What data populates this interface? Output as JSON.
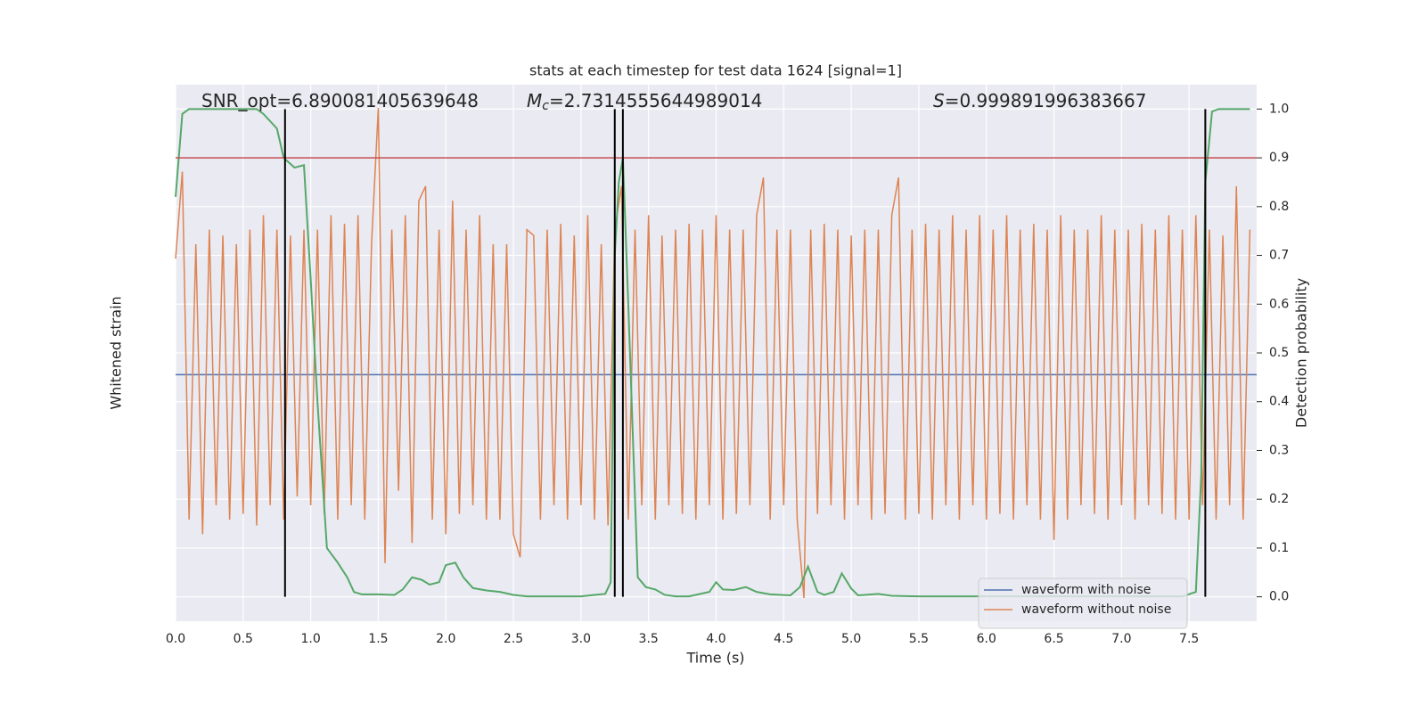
{
  "chart_data": {
    "type": "line",
    "title": "stats at each timestep for test data 1624 [signal=1]",
    "xlabel": "Time (s)",
    "ylabel": "Whitened strain",
    "y2label": "Detection probability",
    "xlim": [
      0,
      8
    ],
    "xticks": [
      {
        "value": 0,
        "label": "0.0"
      },
      0.5,
      {
        "value": 1,
        "label": "1.0"
      },
      1.5,
      {
        "value": 2,
        "label": "2.0"
      },
      2.5,
      {
        "value": 3,
        "label": "3.0"
      },
      3.5,
      {
        "value": 4,
        "label": "4.0"
      },
      4.5,
      {
        "value": 5,
        "label": "5.0"
      },
      5.5,
      {
        "value": 6,
        "label": "6.0"
      },
      6.5,
      {
        "value": 7,
        "label": "7.0"
      },
      7.5
    ],
    "ylim": [
      -0.85,
      1.0
    ],
    "y2lim": [
      -0.05,
      1.05
    ],
    "y2ticks": [
      {
        "value": 0,
        "label": "0.0"
      },
      0.1,
      0.2,
      0.3,
      0.4,
      0.5,
      0.6,
      0.7,
      0.8,
      0.9,
      {
        "value": 1,
        "label": "1.0"
      }
    ],
    "grid": true,
    "legend": "lower right",
    "annotations": [
      {
        "text": "SNR_opt=6.890081405639648"
      },
      {
        "symbol": "M",
        "sub": "c",
        "text": "=2.7314555644989014"
      },
      {
        "symbol": "S",
        "text": "=0.999891996383667"
      }
    ],
    "series": [
      {
        "name": "waveform with noise",
        "color": "#4c72b0",
        "axis": "y",
        "x": [
          0,
          8
        ],
        "values": [
          0,
          0
        ]
      },
      {
        "name": "waveform without noise",
        "color": "#dd8452",
        "axis": "y",
        "x": [
          0,
          0.05,
          0.1,
          0.15,
          0.2,
          0.25,
          0.3,
          0.35,
          0.4,
          0.45,
          0.5,
          0.55,
          0.6,
          0.65,
          0.7,
          0.75,
          0.8,
          0.85,
          0.9,
          0.95,
          1,
          1.05,
          1.1,
          1.15,
          1.2,
          1.25,
          1.3,
          1.35,
          1.4,
          1.45,
          1.5,
          1.55,
          1.6,
          1.65,
          1.7,
          1.75,
          1.8,
          1.85,
          1.9,
          1.95,
          2,
          2.05,
          2.1,
          2.15,
          2.2,
          2.25,
          2.3,
          2.35,
          2.4,
          2.45,
          2.5,
          2.55,
          2.6,
          2.65,
          2.7,
          2.75,
          2.8,
          2.85,
          2.9,
          2.95,
          3,
          3.05,
          3.1,
          3.15,
          3.2,
          3.25,
          3.3,
          3.35,
          3.4,
          3.45,
          3.5,
          3.55,
          3.6,
          3.65,
          3.7,
          3.75,
          3.8,
          3.85,
          3.9,
          3.95,
          4,
          4.05,
          4.1,
          4.15,
          4.2,
          4.25,
          4.3,
          4.35,
          4.4,
          4.45,
          4.5,
          4.55,
          4.6,
          4.65,
          4.7,
          4.75,
          4.8,
          4.85,
          4.9,
          4.95,
          5,
          5.05,
          5.1,
          5.15,
          5.2,
          5.25,
          5.3,
          5.35,
          5.4,
          5.45,
          5.5,
          5.55,
          5.6,
          5.65,
          5.7,
          5.75,
          5.8,
          5.85,
          5.9,
          5.95,
          6,
          6.05,
          6.1,
          6.15,
          6.2,
          6.25,
          6.3,
          6.35,
          6.4,
          6.45,
          6.5,
          6.55,
          6.6,
          6.65,
          6.7,
          6.75,
          6.8,
          6.85,
          6.9,
          6.95,
          7,
          7.05,
          7.1,
          7.15,
          7.2,
          7.25,
          7.3,
          7.35,
          7.4,
          7.45,
          7.5,
          7.55,
          7.6,
          7.65,
          7.7,
          7.75,
          7.8,
          7.85,
          7.9,
          7.95
        ],
        "values": [
          0.4,
          0.7,
          -0.5,
          0.45,
          -0.55,
          0.5,
          -0.45,
          0.48,
          -0.5,
          0.45,
          -0.48,
          0.5,
          -0.52,
          0.55,
          -0.45,
          0.5,
          -0.5,
          0.48,
          -0.42,
          0.5,
          -0.45,
          0.5,
          -0.48,
          0.55,
          -0.5,
          0.52,
          -0.45,
          0.55,
          -0.5,
          0.45,
          0.92,
          -0.65,
          0.5,
          -0.4,
          0.55,
          -0.58,
          0.6,
          0.65,
          -0.5,
          0.5,
          -0.55,
          0.6,
          -0.48,
          0.5,
          -0.45,
          0.55,
          -0.5,
          0.45,
          -0.5,
          0.45,
          -0.55,
          -0.63,
          0.5,
          0.48,
          -0.5,
          0.5,
          -0.45,
          0.52,
          -0.5,
          0.48,
          -0.45,
          0.55,
          -0.5,
          0.45,
          -0.52,
          0.5,
          0.65,
          -0.5,
          0.5,
          -0.45,
          0.55,
          -0.5,
          0.48,
          -0.45,
          0.5,
          -0.48,
          0.52,
          -0.5,
          0.5,
          -0.45,
          0.55,
          -0.5,
          0.5,
          -0.48,
          0.5,
          -0.45,
          0.55,
          0.68,
          -0.5,
          0.5,
          -0.45,
          0.5,
          -0.5,
          -0.77,
          0.5,
          -0.48,
          0.52,
          -0.45,
          0.5,
          -0.5,
          0.48,
          -0.45,
          0.5,
          -0.5,
          0.5,
          -0.48,
          0.55,
          0.68,
          -0.5,
          0.5,
          -0.48,
          0.52,
          -0.5,
          0.5,
          -0.45,
          0.55,
          -0.5,
          0.5,
          -0.45,
          0.55,
          -0.5,
          0.5,
          -0.48,
          0.55,
          -0.5,
          0.5,
          -0.45,
          0.52,
          -0.5,
          0.5,
          -0.57,
          0.55,
          -0.5,
          0.5,
          -0.45,
          0.5,
          -0.48,
          0.55,
          -0.5,
          0.5,
          -0.45,
          0.5,
          -0.5,
          0.52,
          -0.45,
          0.5,
          -0.48,
          0.55,
          -0.5,
          0.5,
          -0.5,
          0.55,
          -0.45,
          0.5,
          -0.5,
          0.48,
          -0.45,
          0.65,
          -0.5,
          0.5
        ]
      },
      {
        "color": "#55a868",
        "axis": "y2",
        "x": [
          0,
          0.05,
          0.1,
          0.6,
          0.65,
          0.75,
          0.8,
          0.88,
          0.95,
          1,
          1.05,
          1.12,
          1.2,
          1.27,
          1.32,
          1.38,
          1.5,
          1.62,
          1.68,
          1.75,
          1.82,
          1.88,
          1.95,
          2,
          2.07,
          2.13,
          2.2,
          2.3,
          2.4,
          2.5,
          2.6,
          3,
          3.1,
          3.18,
          3.22,
          3.25,
          3.28,
          3.31,
          3.35,
          3.42,
          3.48,
          3.55,
          3.62,
          3.7,
          3.8,
          3.95,
          4,
          4.05,
          4.13,
          4.22,
          4.3,
          4.4,
          4.55,
          4.62,
          4.68,
          4.75,
          4.8,
          4.87,
          4.93,
          5,
          5.05,
          5.2,
          5.3,
          5.5,
          7.45,
          7.55,
          7.59,
          7.62,
          7.67,
          7.72,
          7.95
        ],
        "values": [
          0.82,
          0.99,
          1,
          1,
          0.99,
          0.96,
          0.9,
          0.88,
          0.885,
          0.65,
          0.4,
          0.1,
          0.07,
          0.04,
          0.01,
          0.005,
          0.005,
          0.004,
          0.015,
          0.04,
          0.035,
          0.025,
          0.03,
          0.065,
          0.07,
          0.04,
          0.018,
          0.013,
          0.01,
          0.004,
          0.001,
          0.001,
          0.004,
          0.006,
          0.03,
          0.7,
          0.85,
          0.9,
          0.6,
          0.04,
          0.02,
          0.015,
          0.004,
          0.001,
          0.001,
          0.01,
          0.03,
          0.015,
          0.014,
          0.02,
          0.01,
          0.005,
          0.003,
          0.02,
          0.062,
          0.01,
          0.004,
          0.01,
          0.048,
          0.017,
          0.003,
          0.006,
          0.002,
          0.001,
          0.001,
          0.01,
          0.25,
          0.85,
          0.995,
          1,
          1
        ]
      }
    ],
    "hline": {
      "color": "#c44e52",
      "value": 0.9
    },
    "vlines": {
      "color": "#000000",
      "values": [
        0.81,
        3.25,
        3.31,
        7.62
      ]
    }
  }
}
